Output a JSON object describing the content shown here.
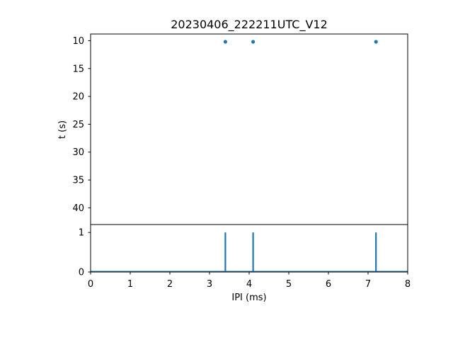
{
  "title": "20230406_222211UTC_V12",
  "chart_data": [
    {
      "type": "scatter",
      "title": "20230406_222211UTC_V12",
      "ylabel": "t (s)",
      "xlim": [
        0,
        8
      ],
      "ylim": [
        43,
        8.8
      ],
      "y_inverted": true,
      "yticks": [
        "10",
        "15",
        "20",
        "25",
        "30",
        "35",
        "40"
      ],
      "marker_color": "#1f77b4",
      "points": [
        {
          "x": 3.4,
          "y": 10.2
        },
        {
          "x": 4.1,
          "y": 10.2
        },
        {
          "x": 7.2,
          "y": 10.2
        }
      ]
    },
    {
      "type": "line",
      "xlabel": "IPI (ms)",
      "xlim": [
        0,
        8
      ],
      "ylim": [
        0,
        1.2
      ],
      "xticks": [
        "0",
        "1",
        "2",
        "3",
        "4",
        "5",
        "6",
        "7",
        "8"
      ],
      "yticks": [
        "0",
        "1"
      ],
      "line_color": "#1f77b4",
      "spikes": [
        {
          "x": 3.4,
          "y": 1
        },
        {
          "x": 4.1,
          "y": 1
        },
        {
          "x": 7.2,
          "y": 1
        }
      ]
    }
  ]
}
